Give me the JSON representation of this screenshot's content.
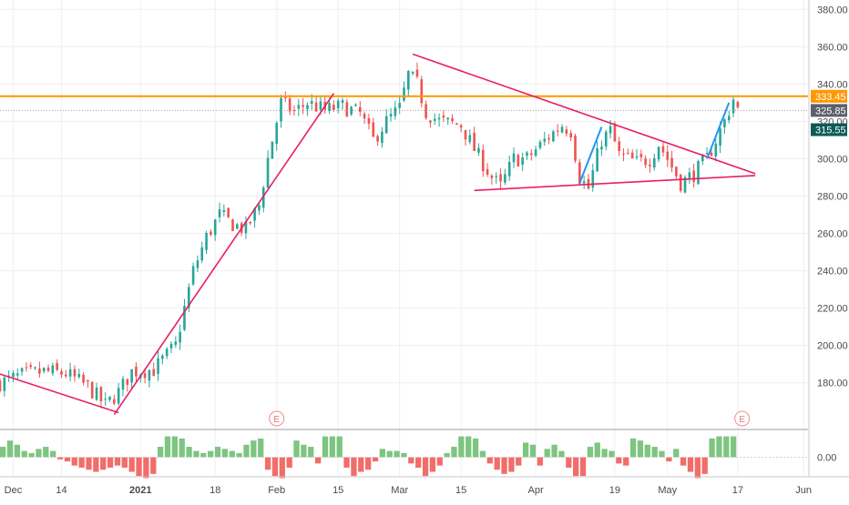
{
  "chart_data": [
    {
      "type": "candlestick",
      "ylim": [
        155,
        385
      ],
      "price_ticks": [
        "180.00",
        "200.00",
        "220.00",
        "240.00",
        "260.00",
        "280.00",
        "300.00",
        "320.00",
        "340.00",
        "360.00",
        "380.00"
      ],
      "x_labels": [
        {
          "text": "Dec",
          "day": 3,
          "bold": false
        },
        {
          "text": "14",
          "day": 14,
          "bold": false
        },
        {
          "text": "2021",
          "day": 32,
          "bold": true
        },
        {
          "text": "18",
          "day": 49,
          "bold": false
        },
        {
          "text": "Feb",
          "day": 63,
          "bold": false
        },
        {
          "text": "15",
          "day": 77,
          "bold": false
        },
        {
          "text": "Mar",
          "day": 91,
          "bold": false
        },
        {
          "text": "15",
          "day": 105,
          "bold": false
        },
        {
          "text": "Apr",
          "day": 122,
          "bold": false
        },
        {
          "text": "19",
          "day": 140,
          "bold": false
        },
        {
          "text": "May",
          "day": 152,
          "bold": false
        },
        {
          "text": "17",
          "day": 168,
          "bold": false
        },
        {
          "text": "Jun",
          "day": 183,
          "bold": false
        }
      ],
      "anchors": [
        {
          "d": 0,
          "p": 180
        },
        {
          "d": 5,
          "p": 184
        },
        {
          "d": 10,
          "p": 186
        },
        {
          "d": 15,
          "p": 185
        },
        {
          "d": 20,
          "p": 178
        },
        {
          "d": 24,
          "p": 168
        },
        {
          "d": 27,
          "p": 175
        },
        {
          "d": 30,
          "p": 186
        },
        {
          "d": 35,
          "p": 187
        },
        {
          "d": 40,
          "p": 200
        },
        {
          "d": 44,
          "p": 240
        },
        {
          "d": 47,
          "p": 258
        },
        {
          "d": 50,
          "p": 270
        },
        {
          "d": 53,
          "p": 265
        },
        {
          "d": 56,
          "p": 262
        },
        {
          "d": 59,
          "p": 275
        },
        {
          "d": 61,
          "p": 300
        },
        {
          "d": 64,
          "p": 330
        },
        {
          "d": 67,
          "p": 325
        },
        {
          "d": 70,
          "p": 330
        },
        {
          "d": 74,
          "p": 326
        },
        {
          "d": 78,
          "p": 328
        },
        {
          "d": 82,
          "p": 324
        },
        {
          "d": 85,
          "p": 310
        },
        {
          "d": 88,
          "p": 320
        },
        {
          "d": 91,
          "p": 327
        },
        {
          "d": 93,
          "p": 345
        },
        {
          "d": 95,
          "p": 340
        },
        {
          "d": 97,
          "p": 325
        },
        {
          "d": 100,
          "p": 320
        },
        {
          "d": 105,
          "p": 318
        },
        {
          "d": 108,
          "p": 305
        },
        {
          "d": 112,
          "p": 290
        },
        {
          "d": 114,
          "p": 285
        },
        {
          "d": 117,
          "p": 300
        },
        {
          "d": 120,
          "p": 300
        },
        {
          "d": 125,
          "p": 312
        },
        {
          "d": 128,
          "p": 318
        },
        {
          "d": 130,
          "p": 315
        },
        {
          "d": 132,
          "p": 290
        },
        {
          "d": 134,
          "p": 284
        },
        {
          "d": 137,
          "p": 310
        },
        {
          "d": 139,
          "p": 315
        },
        {
          "d": 141,
          "p": 302
        },
        {
          "d": 145,
          "p": 298
        },
        {
          "d": 148,
          "p": 300
        },
        {
          "d": 150,
          "p": 308
        },
        {
          "d": 152,
          "p": 300
        },
        {
          "d": 155,
          "p": 287
        },
        {
          "d": 158,
          "p": 292
        },
        {
          "d": 161,
          "p": 300
        },
        {
          "d": 165,
          "p": 320
        },
        {
          "d": 167,
          "p": 332
        },
        {
          "d": 168,
          "p": 326
        }
      ],
      "oscillator": {
        "values": [
          0.5,
          0.8,
          0.6,
          0.3,
          0.2,
          0.4,
          0.5,
          0.3,
          -0.1,
          -0.2,
          -0.4,
          -0.5,
          -0.6,
          -0.7,
          -0.6,
          -0.5,
          -0.4,
          -0.5,
          -0.7,
          -0.9,
          -1.0,
          -0.8,
          0.5,
          1.0,
          1.0,
          0.9,
          0.5,
          0.3,
          0.2,
          0.3,
          0.5,
          0.4,
          0.3,
          0.2,
          0.6,
          0.8,
          0.9,
          -0.6,
          -0.9,
          -1.0,
          -0.5,
          0.8,
          0.6,
          0.5,
          -0.3,
          1.0,
          1.0,
          1.0,
          -0.5,
          -0.9,
          -0.7,
          -0.6,
          -0.2,
          0.4,
          0.3,
          0.3,
          0.2,
          -0.3,
          -0.5,
          -0.9,
          -0.7,
          -0.4,
          0.2,
          0.5,
          1.0,
          1.0,
          0.9,
          0.3,
          -0.3,
          -0.6,
          -0.8,
          -0.7,
          -0.4,
          0.7,
          0.6,
          -0.4,
          0.4,
          0.6,
          0.3,
          -0.5,
          -0.9,
          -0.9,
          0.5,
          0.7,
          0.4,
          0.3,
          -0.3,
          -0.4,
          0.9,
          0.8,
          0.6,
          0.5,
          0.3,
          -0.2,
          0.4,
          -0.4,
          -0.7,
          -1.0,
          -0.8,
          0.9,
          1.0,
          1.0,
          1.0
        ],
        "ylim": [
          -1.2,
          1.2
        ],
        "tick": "0.00",
        "positive_color": "#66bb6a",
        "negative_color": "#ef5350"
      },
      "annotations": [
        {
          "id": "support-trend",
          "from": {
            "d": -3,
            "p": 187
          },
          "to": {
            "d": 27,
            "p": 164
          },
          "color": "#e91e63"
        },
        {
          "id": "rise-trend",
          "from": {
            "d": 26,
            "p": 163
          },
          "to": {
            "d": 76,
            "p": 335
          },
          "color": "#e91e63"
        },
        {
          "id": "upper-wedge",
          "from": {
            "d": 94,
            "p": 356
          },
          "to": {
            "d": 172,
            "p": 292
          },
          "color": "#e91e63"
        },
        {
          "id": "lower-wedge",
          "from": {
            "d": 108,
            "p": 283
          },
          "to": {
            "d": 172,
            "p": 291
          },
          "color": "#e91e63"
        },
        {
          "id": "blue-leg-1",
          "from": {
            "d": 132,
            "p": 287
          },
          "to": {
            "d": 137,
            "p": 317
          },
          "color": "#2196f3"
        },
        {
          "id": "blue-leg-2",
          "from": {
            "d": 161,
            "p": 300
          },
          "to": {
            "d": 166,
            "p": 330
          },
          "color": "#2196f3"
        }
      ],
      "horizontal_levels": [
        {
          "price": 333.45,
          "color": "#ff9800",
          "style": "solid"
        },
        {
          "price": 325.85,
          "color": "#9e9e9e",
          "style": "dotted"
        }
      ],
      "price_tags": [
        {
          "text": "333.45",
          "price": 333.45,
          "color": "#ff9800"
        },
        {
          "text": "325.85",
          "price": 325.85,
          "color": "#5d606b"
        },
        {
          "text": "315.55",
          "price": 315.55,
          "color": "#0c5b56"
        }
      ],
      "event_markers": [
        {
          "label": "E",
          "day": 63
        },
        {
          "label": "E",
          "day": 169
        }
      ],
      "colors": {
        "up": "#26a69a",
        "down": "#ef5350",
        "grid": "#eef0f3"
      }
    }
  ]
}
